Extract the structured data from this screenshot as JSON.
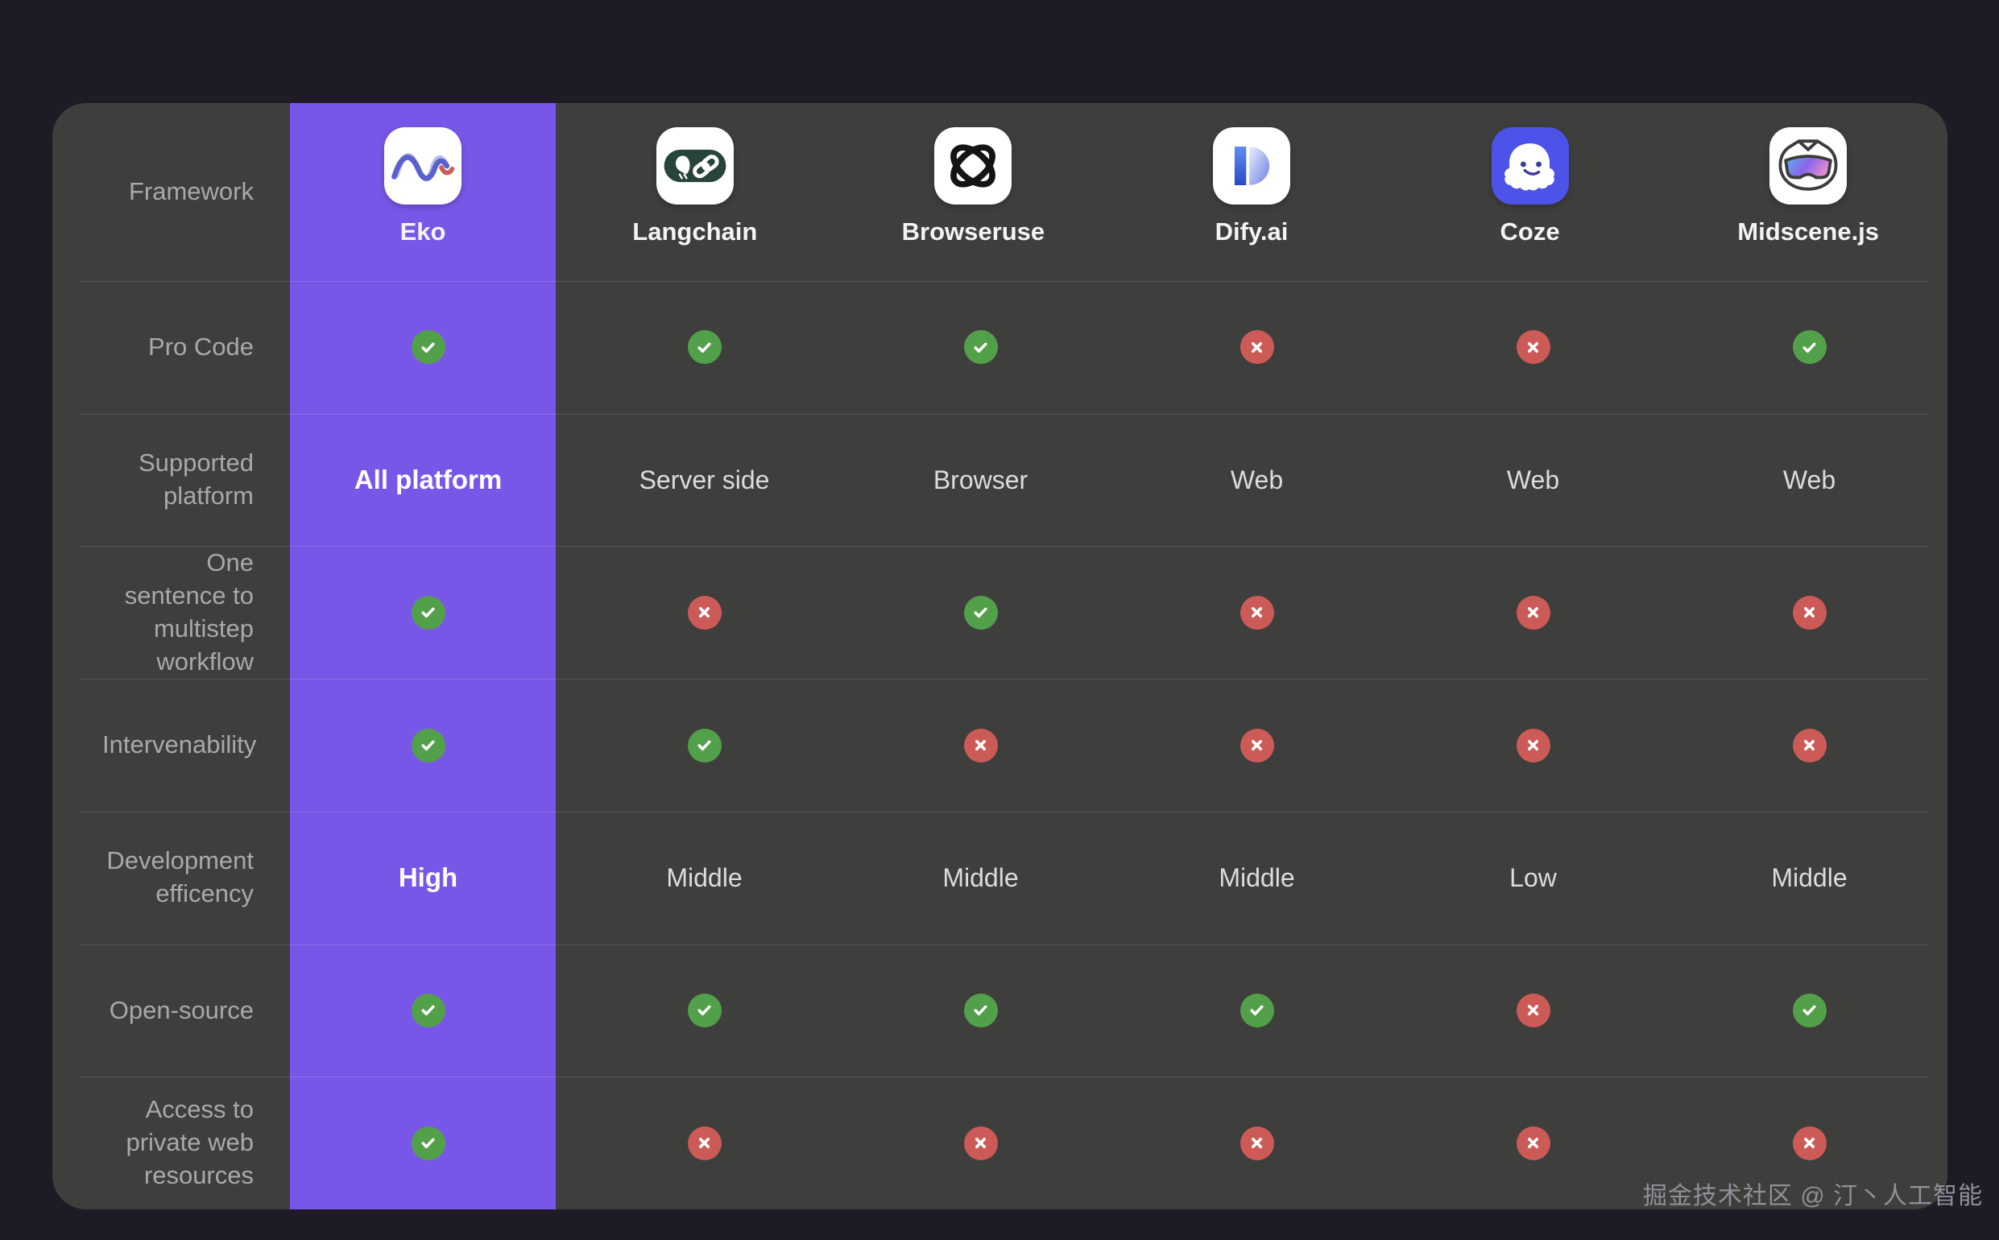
{
  "page": {
    "watermark": "掘金技术社区 @ 汀丶人工智能"
  },
  "colors": {
    "page_background": "#1E1B26",
    "card_background": "#3E3E3C",
    "accent_purple": "#7857E8",
    "check_green": "#53A04A",
    "cross_red": "#CC5B58",
    "coze_tile_blue": "#4D53E8"
  },
  "frameworks": [
    {
      "label": "Eko",
      "icon": "eko-wave-icon",
      "highlighted": true
    },
    {
      "label": "Langchain",
      "icon": "langchain-parrot-chain-icon",
      "highlighted": false
    },
    {
      "label": "Browseruse",
      "icon": "browseruse-orbit-icon",
      "highlighted": false
    },
    {
      "label": "Dify.ai",
      "icon": "dify-d-icon",
      "highlighted": false
    },
    {
      "label": "Coze",
      "icon": "coze-ghost-icon",
      "highlighted": false
    },
    {
      "label": "Midscene.js",
      "icon": "midscene-goggles-icon",
      "highlighted": false
    }
  ],
  "chart_data": {
    "type": "table",
    "corner_label": "Framework",
    "columns": [
      "Eko",
      "Langchain",
      "Browseruse",
      "Dify.ai",
      "Coze",
      "Midscene.js"
    ],
    "rows": [
      {
        "label": "Pro Code",
        "values": [
          "check",
          "check",
          "check",
          "cross",
          "cross",
          "check"
        ]
      },
      {
        "label": "Supported platform",
        "values": [
          "All platform",
          "Server side",
          "Browser",
          "Web",
          "Web",
          "Web"
        ]
      },
      {
        "label": "One sentence to multistep workflow",
        "values": [
          "check",
          "cross",
          "check",
          "cross",
          "cross",
          "cross"
        ]
      },
      {
        "label": "Intervenability",
        "values": [
          "check",
          "check",
          "cross",
          "cross",
          "cross",
          "cross"
        ]
      },
      {
        "label": "Development efficency",
        "values": [
          "High",
          "Middle",
          "Middle",
          "Middle",
          "Low",
          "Middle"
        ]
      },
      {
        "label": "Open-source",
        "values": [
          "check",
          "check",
          "check",
          "check",
          "cross",
          "check"
        ]
      },
      {
        "label": "Access to private web resources",
        "values": [
          "check",
          "cross",
          "cross",
          "cross",
          "cross",
          "cross"
        ]
      }
    ]
  }
}
